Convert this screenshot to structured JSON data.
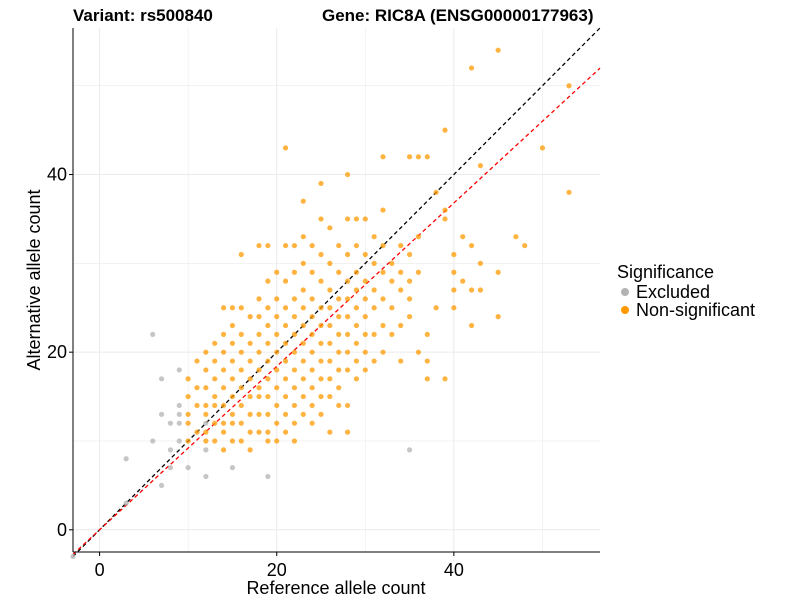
{
  "chart_data": {
    "type": "scatter",
    "title_left": "Variant: rs500840",
    "title_right": "Gene: RIC8A (ENSG00000177963)",
    "xlabel": "Reference allele count",
    "ylabel": "Alternative allele count",
    "xlim": [
      -3,
      56.5
    ],
    "ylim": [
      -2.5,
      56.5
    ],
    "x_ticks": [
      0,
      20,
      40
    ],
    "y_ticks": [
      0,
      20,
      40
    ],
    "grid": true,
    "legend": {
      "title": "Significance",
      "position": "right",
      "entries": [
        {
          "label": "Excluded",
          "color": "#b3b3b3"
        },
        {
          "label": "Non-significant",
          "color": "#ff9900"
        }
      ]
    },
    "reference_lines": [
      {
        "name": "identity",
        "slope": 1.0,
        "intercept": 0,
        "color": "#000000",
        "style": "dashed"
      },
      {
        "name": "fit",
        "slope": 0.92,
        "intercept": 0,
        "color": "#ff0000",
        "style": "dashed"
      }
    ],
    "series": [
      {
        "name": "Excluded",
        "color": "#b3b3b3",
        "points": [
          [
            -3,
            -3
          ],
          [
            3,
            8
          ],
          [
            3,
            3
          ],
          [
            6,
            22
          ],
          [
            6,
            10
          ],
          [
            7,
            17
          ],
          [
            7,
            13
          ],
          [
            7,
            5
          ],
          [
            8,
            12
          ],
          [
            8,
            9
          ],
          [
            8,
            7
          ],
          [
            9,
            18
          ],
          [
            9,
            14
          ],
          [
            9,
            13
          ],
          [
            9,
            12
          ],
          [
            9,
            10
          ],
          [
            10,
            7
          ],
          [
            12,
            12
          ],
          [
            12,
            9
          ],
          [
            12,
            6
          ],
          [
            15,
            7
          ],
          [
            19,
            6
          ],
          [
            35,
            9
          ]
        ]
      },
      {
        "name": "Non-significant",
        "color": "#ff9900",
        "points": [
          [
            10,
            17
          ],
          [
            10,
            15
          ],
          [
            10,
            13
          ],
          [
            10,
            12
          ],
          [
            10,
            10
          ],
          [
            11,
            19
          ],
          [
            11,
            16
          ],
          [
            11,
            14
          ],
          [
            11,
            11
          ],
          [
            12,
            20
          ],
          [
            12,
            18
          ],
          [
            12,
            16
          ],
          [
            12,
            14
          ],
          [
            12,
            13
          ],
          [
            12,
            11
          ],
          [
            12,
            10
          ],
          [
            13,
            21
          ],
          [
            13,
            19
          ],
          [
            13,
            17
          ],
          [
            13,
            15
          ],
          [
            13,
            14
          ],
          [
            13,
            12
          ],
          [
            13,
            10
          ],
          [
            14,
            25
          ],
          [
            14,
            22
          ],
          [
            14,
            20
          ],
          [
            14,
            18
          ],
          [
            14,
            16
          ],
          [
            14,
            14
          ],
          [
            14,
            12
          ],
          [
            14,
            11
          ],
          [
            14,
            9
          ],
          [
            15,
            25
          ],
          [
            15,
            23
          ],
          [
            15,
            21
          ],
          [
            15,
            19
          ],
          [
            15,
            17
          ],
          [
            15,
            15
          ],
          [
            15,
            13
          ],
          [
            15,
            12
          ],
          [
            15,
            10
          ],
          [
            16,
            31
          ],
          [
            16,
            25
          ],
          [
            16,
            22
          ],
          [
            16,
            20
          ],
          [
            16,
            18
          ],
          [
            16,
            16
          ],
          [
            16,
            14
          ],
          [
            16,
            12
          ],
          [
            16,
            10
          ],
          [
            17,
            24
          ],
          [
            17,
            21
          ],
          [
            17,
            19
          ],
          [
            17,
            17
          ],
          [
            17,
            15
          ],
          [
            17,
            13
          ],
          [
            17,
            11
          ],
          [
            17,
            9
          ],
          [
            18,
            32
          ],
          [
            18,
            26
          ],
          [
            18,
            24
          ],
          [
            18,
            22
          ],
          [
            18,
            20
          ],
          [
            18,
            18
          ],
          [
            18,
            16
          ],
          [
            18,
            15
          ],
          [
            18,
            13
          ],
          [
            18,
            11
          ],
          [
            19,
            32
          ],
          [
            19,
            28
          ],
          [
            19,
            25
          ],
          [
            19,
            23
          ],
          [
            19,
            21
          ],
          [
            19,
            19
          ],
          [
            19,
            17
          ],
          [
            19,
            15
          ],
          [
            19,
            13
          ],
          [
            19,
            11
          ],
          [
            19,
            10
          ],
          [
            20,
            29
          ],
          [
            20,
            26
          ],
          [
            20,
            24
          ],
          [
            20,
            22
          ],
          [
            20,
            20
          ],
          [
            20,
            18
          ],
          [
            20,
            16
          ],
          [
            20,
            14
          ],
          [
            20,
            12
          ],
          [
            20,
            10
          ],
          [
            21,
            43
          ],
          [
            21,
            32
          ],
          [
            21,
            28
          ],
          [
            21,
            25
          ],
          [
            21,
            23
          ],
          [
            21,
            21
          ],
          [
            21,
            19
          ],
          [
            21,
            17
          ],
          [
            21,
            15
          ],
          [
            21,
            13
          ],
          [
            21,
            11
          ],
          [
            22,
            32
          ],
          [
            22,
            29
          ],
          [
            22,
            26
          ],
          [
            22,
            24
          ],
          [
            22,
            22
          ],
          [
            22,
            20
          ],
          [
            22,
            18
          ],
          [
            22,
            16
          ],
          [
            22,
            14
          ],
          [
            22,
            12
          ],
          [
            22,
            10
          ],
          [
            23,
            37
          ],
          [
            23,
            33
          ],
          [
            23,
            30
          ],
          [
            23,
            27
          ],
          [
            23,
            25
          ],
          [
            23,
            23
          ],
          [
            23,
            21
          ],
          [
            23,
            19
          ],
          [
            23,
            17
          ],
          [
            23,
            15
          ],
          [
            23,
            13
          ],
          [
            24,
            32
          ],
          [
            24,
            29
          ],
          [
            24,
            26
          ],
          [
            24,
            24
          ],
          [
            24,
            22
          ],
          [
            24,
            20
          ],
          [
            24,
            18
          ],
          [
            24,
            16
          ],
          [
            24,
            14
          ],
          [
            24,
            12
          ],
          [
            25,
            39
          ],
          [
            25,
            35
          ],
          [
            25,
            31
          ],
          [
            25,
            28
          ],
          [
            25,
            25
          ],
          [
            25,
            23
          ],
          [
            25,
            21
          ],
          [
            25,
            19
          ],
          [
            25,
            17
          ],
          [
            25,
            15
          ],
          [
            25,
            13
          ],
          [
            26,
            34
          ],
          [
            26,
            30
          ],
          [
            26,
            27
          ],
          [
            26,
            25
          ],
          [
            26,
            23
          ],
          [
            26,
            21
          ],
          [
            26,
            19
          ],
          [
            26,
            17
          ],
          [
            26,
            15
          ],
          [
            26,
            11
          ],
          [
            27,
            32
          ],
          [
            27,
            29
          ],
          [
            27,
            26
          ],
          [
            27,
            24
          ],
          [
            27,
            22
          ],
          [
            27,
            20
          ],
          [
            27,
            18
          ],
          [
            27,
            16
          ],
          [
            27,
            14
          ],
          [
            28,
            40
          ],
          [
            28,
            35
          ],
          [
            28,
            31
          ],
          [
            28,
            28
          ],
          [
            28,
            26
          ],
          [
            28,
            24
          ],
          [
            28,
            22
          ],
          [
            28,
            20
          ],
          [
            28,
            18
          ],
          [
            28,
            14
          ],
          [
            28,
            11
          ],
          [
            29,
            35
          ],
          [
            29,
            32
          ],
          [
            29,
            29
          ],
          [
            29,
            27
          ],
          [
            29,
            25
          ],
          [
            29,
            23
          ],
          [
            29,
            21
          ],
          [
            29,
            19
          ],
          [
            29,
            17
          ],
          [
            30,
            35
          ],
          [
            30,
            31
          ],
          [
            30,
            28
          ],
          [
            30,
            26
          ],
          [
            30,
            24
          ],
          [
            30,
            22
          ],
          [
            30,
            20
          ],
          [
            30,
            18
          ],
          [
            31,
            33
          ],
          [
            31,
            30
          ],
          [
            31,
            27
          ],
          [
            31,
            25
          ],
          [
            31,
            22
          ],
          [
            31,
            19
          ],
          [
            32,
            42
          ],
          [
            32,
            36
          ],
          [
            32,
            32
          ],
          [
            32,
            29
          ],
          [
            32,
            26
          ],
          [
            32,
            23
          ],
          [
            32,
            20
          ],
          [
            33,
            30
          ],
          [
            33,
            28
          ],
          [
            33,
            25
          ],
          [
            33,
            22
          ],
          [
            34,
            32
          ],
          [
            34,
            29
          ],
          [
            34,
            27
          ],
          [
            34,
            23
          ],
          [
            34,
            19
          ],
          [
            35,
            42
          ],
          [
            35,
            31
          ],
          [
            35,
            28
          ],
          [
            35,
            26
          ],
          [
            35,
            24
          ],
          [
            36,
            42
          ],
          [
            36,
            33
          ],
          [
            36,
            29
          ],
          [
            36,
            20
          ],
          [
            37,
            42
          ],
          [
            37,
            22
          ],
          [
            37,
            19
          ],
          [
            37,
            17
          ],
          [
            38,
            38
          ],
          [
            38,
            25
          ],
          [
            39,
            45
          ],
          [
            39,
            36
          ],
          [
            39,
            35
          ],
          [
            39,
            17
          ],
          [
            40,
            31
          ],
          [
            40,
            29
          ],
          [
            40,
            27
          ],
          [
            40,
            25
          ],
          [
            41,
            33
          ],
          [
            41,
            28
          ],
          [
            42,
            52
          ],
          [
            42,
            32
          ],
          [
            42,
            27
          ],
          [
            42,
            23
          ],
          [
            43,
            41
          ],
          [
            43,
            30
          ],
          [
            43,
            27
          ],
          [
            45,
            54
          ],
          [
            45,
            29
          ],
          [
            45,
            24
          ],
          [
            47,
            33
          ],
          [
            48,
            32
          ],
          [
            50,
            43
          ],
          [
            53,
            50
          ],
          [
            53,
            38
          ]
        ]
      }
    ]
  }
}
